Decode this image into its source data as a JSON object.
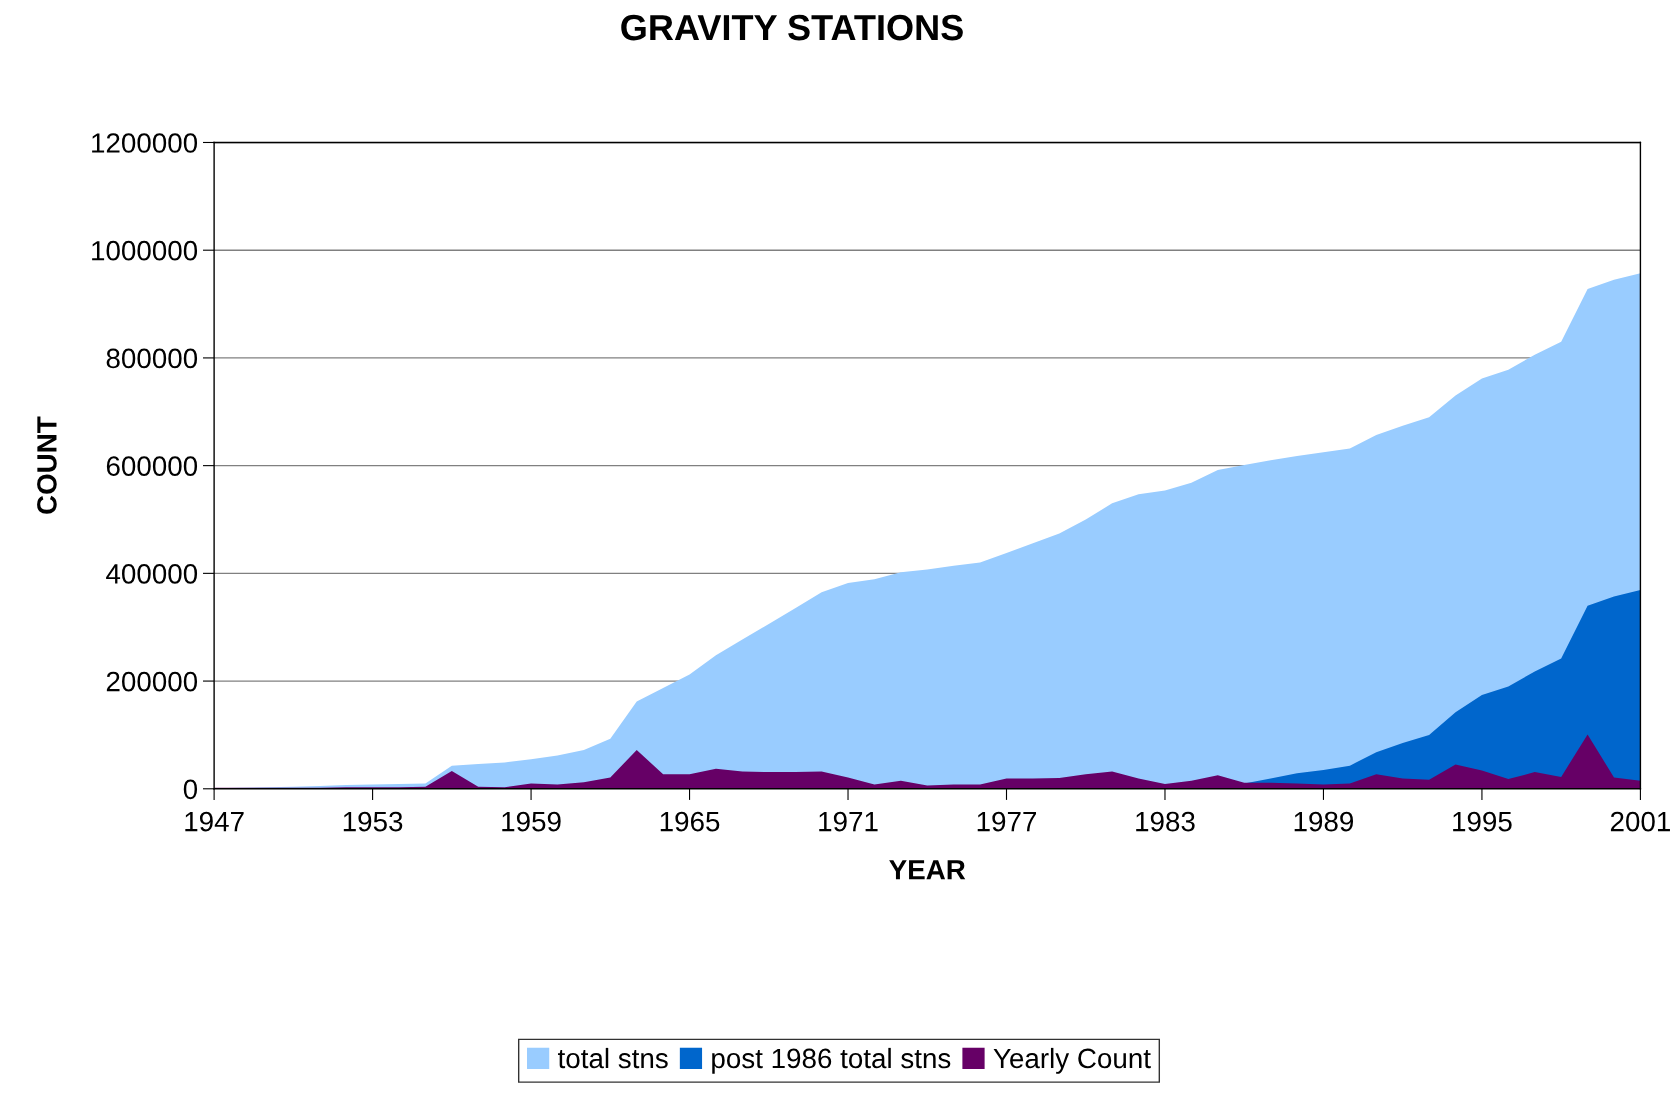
{
  "chart_data": {
    "type": "area",
    "title": "GRAVITY STATIONS",
    "xlabel": "YEAR",
    "ylabel": "COUNT",
    "x": [
      1947,
      1948,
      1949,
      1950,
      1951,
      1952,
      1953,
      1954,
      1955,
      1956,
      1957,
      1958,
      1959,
      1960,
      1961,
      1962,
      1963,
      1964,
      1965,
      1966,
      1967,
      1968,
      1969,
      1970,
      1971,
      1972,
      1973,
      1974,
      1975,
      1976,
      1977,
      1978,
      1979,
      1980,
      1981,
      1982,
      1983,
      1984,
      1985,
      1986,
      1987,
      1988,
      1989,
      1990,
      1991,
      1992,
      1993,
      1994,
      1995,
      1996,
      1997,
      1998,
      1999,
      2000,
      2001
    ],
    "series": [
      {
        "name": "total stns",
        "color": "#99ccff",
        "values": [
          1000,
          2000,
          3000,
          4000,
          5000,
          7000,
          8000,
          9000,
          10000,
          43000,
          46000,
          49000,
          55000,
          62000,
          72000,
          93000,
          162000,
          187000,
          212000,
          248000,
          277000,
          306000,
          335000,
          365000,
          382000,
          389000,
          402000,
          407000,
          414000,
          420000,
          438000,
          456000,
          474000,
          500000,
          530000,
          547000,
          554000,
          568000,
          592000,
          601000,
          610000,
          618000,
          625000,
          632000,
          657000,
          674000,
          690000,
          730000,
          762000,
          778000,
          806000,
          830000,
          928000,
          945000,
          957000
        ]
      },
      {
        "name": "post 1986 total stns",
        "color": "#0066cc",
        "x": [
          1986,
          1987,
          1988,
          1989,
          1990,
          1991,
          1992,
          1993,
          1994,
          1995,
          1996,
          1997,
          1998,
          1999,
          2000,
          2001
        ],
        "values": [
          10000,
          19000,
          29000,
          35000,
          43000,
          68000,
          85000,
          100000,
          142000,
          174000,
          190000,
          218000,
          242000,
          340000,
          357000,
          369000
        ]
      },
      {
        "name": "Yearly Count",
        "color": "#660066",
        "values": [
          2000,
          2000,
          2000,
          2000,
          2000,
          3000,
          3000,
          3000,
          4000,
          33000,
          4000,
          3000,
          10000,
          8000,
          12000,
          21000,
          72000,
          27000,
          27000,
          37000,
          32000,
          31000,
          31000,
          32000,
          21000,
          8000,
          15000,
          6000,
          8000,
          8000,
          19000,
          19000,
          20000,
          27000,
          32000,
          19000,
          9000,
          15000,
          25000,
          11000,
          11000,
          10000,
          8000,
          10000,
          27000,
          19000,
          17000,
          45000,
          34000,
          18000,
          31000,
          22000,
          101000,
          21000,
          15000
        ]
      }
    ],
    "xlim": [
      1947,
      2001
    ],
    "xticks": [
      1947,
      1953,
      1959,
      1965,
      1971,
      1977,
      1983,
      1989,
      1995,
      2001
    ],
    "ylim": [
      0,
      1200000
    ],
    "yticks": [
      0,
      200000,
      400000,
      600000,
      800000,
      1000000,
      1200000
    ],
    "grid": "y",
    "legend": "bottom"
  }
}
